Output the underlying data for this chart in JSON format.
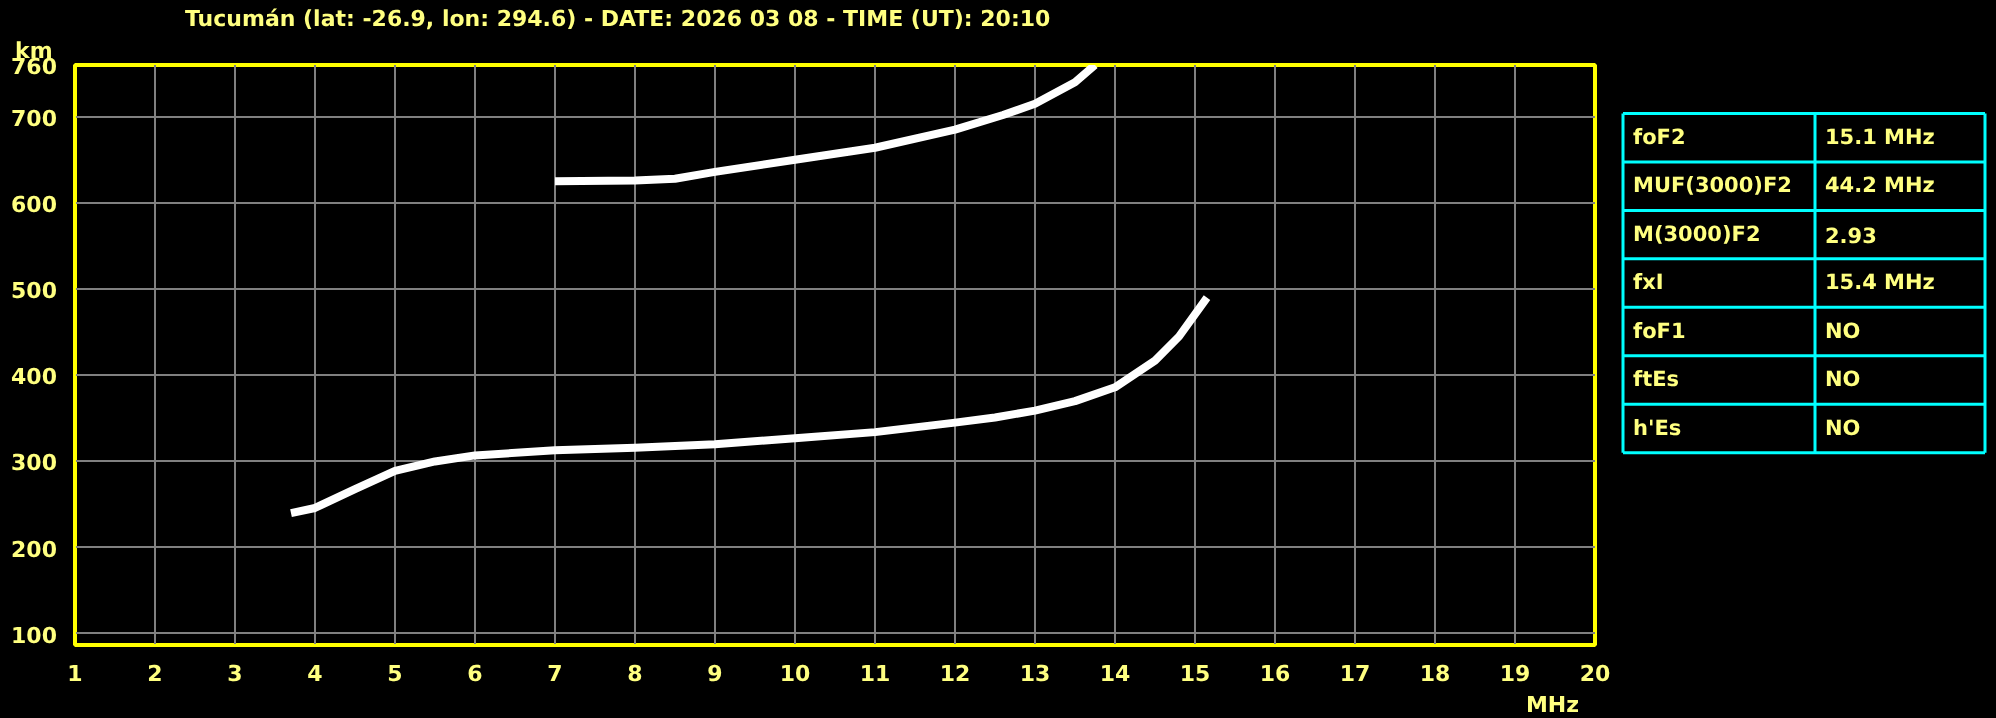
{
  "chart_data": [
    {
      "type": "line",
      "title": "Tucumán (lat: -26.9, lon: 294.6) - DATE: 2026 03 08 - TIME (UT): 20:10",
      "xlabel": "MHz",
      "ylabel": "km",
      "xlim": [
        1,
        20
      ],
      "xticks": [
        1,
        2,
        3,
        4,
        5,
        6,
        7,
        8,
        9,
        10,
        11,
        12,
        13,
        14,
        15,
        16,
        17,
        18,
        19,
        20
      ],
      "ylim": [
        87,
        760
      ],
      "yticks": [
        100,
        200,
        300,
        400,
        500,
        600,
        700,
        760
      ],
      "grid": true,
      "series": [
        {
          "color": "#ffffff",
          "x": [
            3.7,
            4,
            4.5,
            5,
            5.5,
            6,
            7,
            8,
            9,
            10,
            11,
            12,
            12.5,
            13,
            13.5,
            14,
            14.5,
            14.8,
            15.15
          ],
          "values": [
            240,
            246,
            268,
            289,
            300,
            307,
            313,
            316,
            320,
            327,
            334,
            345,
            351,
            359,
            370,
            386,
            417,
            445,
            490
          ]
        },
        {
          "color": "#ffffff",
          "x": [
            7,
            8,
            8.5,
            9,
            10,
            11,
            12,
            12.6,
            13,
            13.5,
            13.75
          ],
          "values": [
            625,
            626,
            628,
            636,
            650,
            664,
            685,
            702,
            715,
            740,
            760
          ]
        }
      ]
    },
    {
      "type": "other",
      "annotations": [
        "foF2",
        "15.1 MHz",
        "MUF(3000)F2",
        "44.2 MHz",
        "M(3000)F2",
        "2.93",
        "fxI",
        "15.4 MHz",
        "foF1",
        "NO",
        "ftEs",
        "NO",
        "h'Es",
        "NO"
      ]
    }
  ]
}
